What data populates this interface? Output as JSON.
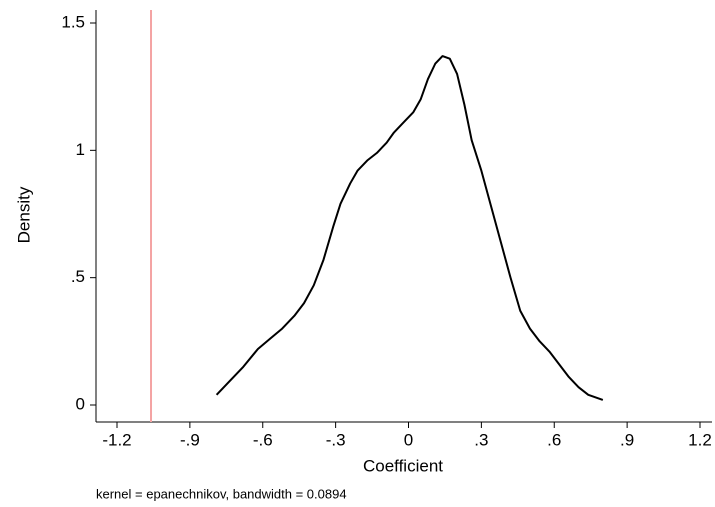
{
  "chart_data": {
    "type": "line",
    "x_label": "Coefficient",
    "y_label": "Density",
    "note": "kernel = epanechnikov, bandwidth = 0.0894",
    "series": [
      {
        "color": "#000000",
        "x": [
          -0.79,
          -0.74,
          -0.68,
          -0.62,
          -0.57,
          -0.52,
          -0.47,
          -0.43,
          -0.39,
          -0.35,
          -0.31,
          -0.28,
          -0.24,
          -0.21,
          -0.17,
          -0.13,
          -0.09,
          -0.06,
          -0.02,
          0.02,
          0.05,
          0.08,
          0.11,
          0.14,
          0.17,
          0.2,
          0.23,
          0.26,
          0.3,
          0.34,
          0.38,
          0.42,
          0.46,
          0.5,
          0.54,
          0.58,
          0.62,
          0.66,
          0.7,
          0.74,
          0.8
        ],
        "values": [
          0.04,
          0.09,
          0.15,
          0.22,
          0.26,
          0.3,
          0.35,
          0.4,
          0.47,
          0.57,
          0.7,
          0.79,
          0.87,
          0.92,
          0.96,
          0.99,
          1.03,
          1.07,
          1.11,
          1.15,
          1.2,
          1.28,
          1.34,
          1.37,
          1.36,
          1.3,
          1.18,
          1.04,
          0.92,
          0.78,
          0.64,
          0.5,
          0.37,
          0.3,
          0.25,
          0.21,
          0.16,
          0.11,
          0.07,
          0.04,
          0.02
        ]
      }
    ],
    "reference_line": {
      "x": -1.06,
      "color": "#f4a3a3"
    },
    "xlim": [
      -1.2,
      1.2
    ],
    "xticks": [
      -1.2,
      {
        "value": -0.9,
        "label": "-.9"
      },
      {
        "value": -0.6,
        "label": "-.6"
      },
      {
        "value": -0.3,
        "label": "-.3"
      },
      0,
      {
        "value": 0.3,
        "label": ".3"
      },
      {
        "value": 0.6,
        "label": ".6"
      },
      {
        "value": 0.9,
        "label": ".9"
      },
      1.2
    ],
    "ylim": [
      0,
      1.5
    ],
    "yticks": [
      0,
      {
        "value": 0.5,
        "label": ".5"
      },
      1,
      1.5
    ],
    "grid": false
  }
}
